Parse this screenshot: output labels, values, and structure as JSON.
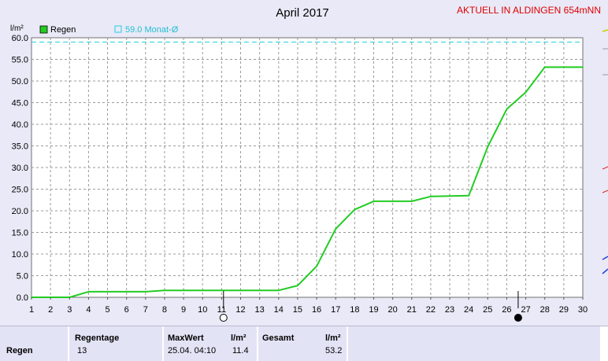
{
  "chart_data": {
    "type": "line",
    "title": "April 2017",
    "station_label": "AKTUELL IN ALDINGEN 654mNN",
    "ylabel": "l/m²",
    "xlim": [
      1,
      30
    ],
    "ylim": [
      0,
      60
    ],
    "yticks": [
      "0.0",
      "5.0",
      "10.0",
      "15.0",
      "20.0",
      "25.0",
      "30.0",
      "35.0",
      "40.0",
      "45.0",
      "50.0",
      "55.0",
      "60.0"
    ],
    "xticks": [
      "1",
      "2",
      "3",
      "4",
      "5",
      "6",
      "7",
      "8",
      "9",
      "10",
      "11",
      "12",
      "13",
      "14",
      "15",
      "16",
      "17",
      "18",
      "19",
      "20",
      "21",
      "22",
      "23",
      "24",
      "25",
      "26",
      "27",
      "28",
      "29",
      "30"
    ],
    "grid": true,
    "legend_position": "top-left",
    "series": [
      {
        "name": "Regen",
        "color": "#22cc22",
        "x": [
          1,
          2,
          3,
          4,
          5,
          6,
          7,
          8,
          9,
          10,
          11,
          12,
          13,
          14,
          15,
          16,
          17,
          18,
          19,
          20,
          21,
          22,
          23,
          24,
          25,
          26,
          27,
          28,
          29,
          30
        ],
        "values": [
          0.0,
          0.0,
          0.0,
          1.3,
          1.3,
          1.3,
          1.3,
          1.6,
          1.6,
          1.6,
          1.6,
          1.6,
          1.6,
          1.6,
          2.7,
          7.2,
          15.8,
          20.3,
          22.2,
          22.2,
          22.2,
          23.3,
          23.4,
          23.5,
          34.8,
          43.5,
          47.4,
          53.2,
          53.2,
          53.2
        ]
      }
    ],
    "reference_line": {
      "name": "59.0 Monat-Ø",
      "value": 59.0,
      "color": "#22d0e0"
    },
    "moon_phases": [
      {
        "day": 11.1,
        "phase": "full"
      },
      {
        "day": 26.6,
        "phase": "new"
      }
    ]
  },
  "summary": {
    "row_label": "Regen",
    "regentage_label": "Regentage",
    "regentage_value": "13",
    "maxwert_label": "MaxWert",
    "maxwert_unit": "l/m²",
    "maxwert_time": "25.04. 04:10",
    "maxwert_value": "11.4",
    "gesamt_label": "Gesamt",
    "gesamt_unit": "l/m²",
    "gesamt_value": "53.2"
  }
}
